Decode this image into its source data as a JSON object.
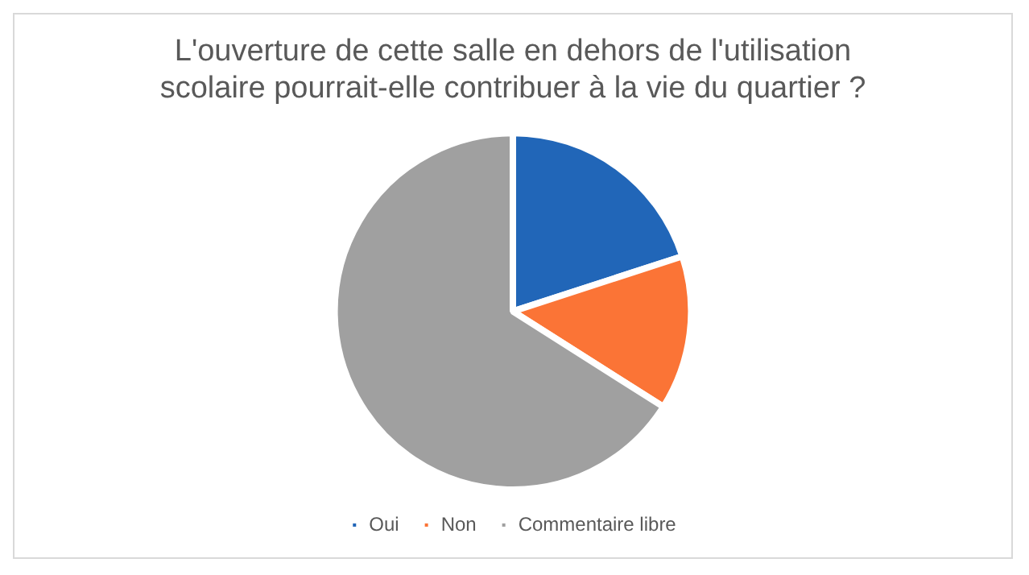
{
  "chart_data": {
    "type": "pie",
    "title": "L'ouverture de cette salle en dehors de l'utilisation scolaire pourrait-elle contribuer à la vie du quartier ?",
    "categories": [
      "Oui",
      "Non",
      "Commentaire libre"
    ],
    "values": [
      20,
      14,
      66
    ],
    "colors": [
      "#2166b8",
      "#fb7436",
      "#a0a0a0"
    ],
    "legend": "bottom"
  }
}
